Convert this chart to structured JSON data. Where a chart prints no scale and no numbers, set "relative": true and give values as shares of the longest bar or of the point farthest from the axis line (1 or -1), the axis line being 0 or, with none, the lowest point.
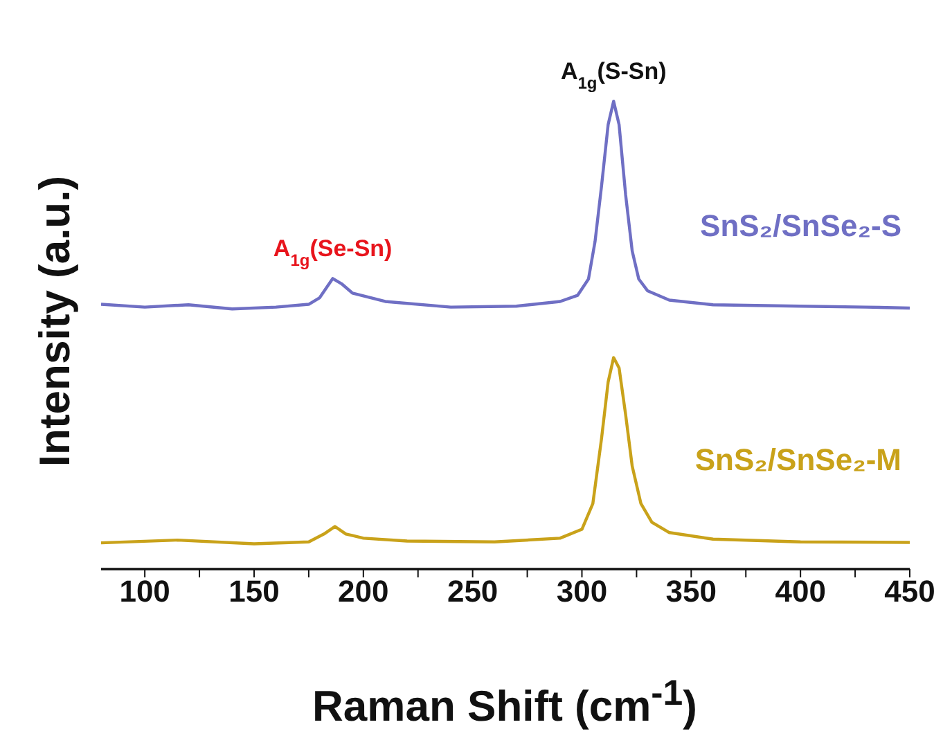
{
  "chart_data": {
    "type": "line",
    "relative": true,
    "xlabel": "Raman Shift (cm$^{-1}$)",
    "ylabel": "Intensity (a.u.)",
    "xlim": [
      80,
      450
    ],
    "xticks": [
      100,
      {
        "value": 125,
        "label": null
      },
      150,
      {
        "value": 175,
        "label": null
      },
      200,
      {
        "value": 225,
        "label": null
      },
      250,
      {
        "value": 275,
        "label": null
      },
      300,
      {
        "value": 325,
        "label": null
      },
      350,
      {
        "value": 375,
        "label": null
      },
      400,
      {
        "value": 425,
        "label": null
      },
      450
    ],
    "grid": false,
    "legend": false,
    "marker": "none",
    "line_style": "solid",
    "series": [
      {
        "name": "SnS₂/SnSe₂-S",
        "color": "#6f6fc4",
        "x": [
          80,
          100,
          120,
          140,
          160,
          175,
          180,
          186,
          190,
          195,
          210,
          240,
          270,
          290,
          298,
          303,
          306,
          309,
          312,
          314.5,
          317,
          320,
          323,
          326,
          330,
          340,
          360,
          400,
          430,
          450
        ],
        "values": [
          0.566,
          0.56,
          0.565,
          0.556,
          0.56,
          0.566,
          0.58,
          0.621,
          0.61,
          0.59,
          0.572,
          0.56,
          0.562,
          0.572,
          0.585,
          0.62,
          0.7,
          0.82,
          0.95,
          1.0,
          0.95,
          0.8,
          0.68,
          0.62,
          0.595,
          0.575,
          0.565,
          0.562,
          0.56,
          0.558
        ]
      },
      {
        "name": "SnS₂/SnSe₂-M",
        "color": "#c9a21a",
        "x": [
          80,
          115,
          150,
          175,
          182,
          187,
          192,
          200,
          220,
          260,
          290,
          300,
          305,
          309,
          312,
          314.5,
          317,
          320,
          323,
          327,
          332,
          340,
          360,
          400,
          450
        ],
        "values": [
          0.056,
          0.062,
          0.054,
          0.058,
          0.075,
          0.091,
          0.075,
          0.066,
          0.06,
          0.058,
          0.066,
          0.085,
          0.14,
          0.28,
          0.4,
          0.452,
          0.43,
          0.33,
          0.22,
          0.14,
          0.1,
          0.078,
          0.064,
          0.058,
          0.057
        ]
      }
    ],
    "annotations": [
      {
        "text": "A$_{1g}$(Se-Sn)",
        "x": 186,
        "y": 0.621
      },
      {
        "text": "A$_{1g}$(S-Sn)",
        "x": 314.5,
        "y": 1.0
      }
    ]
  }
}
